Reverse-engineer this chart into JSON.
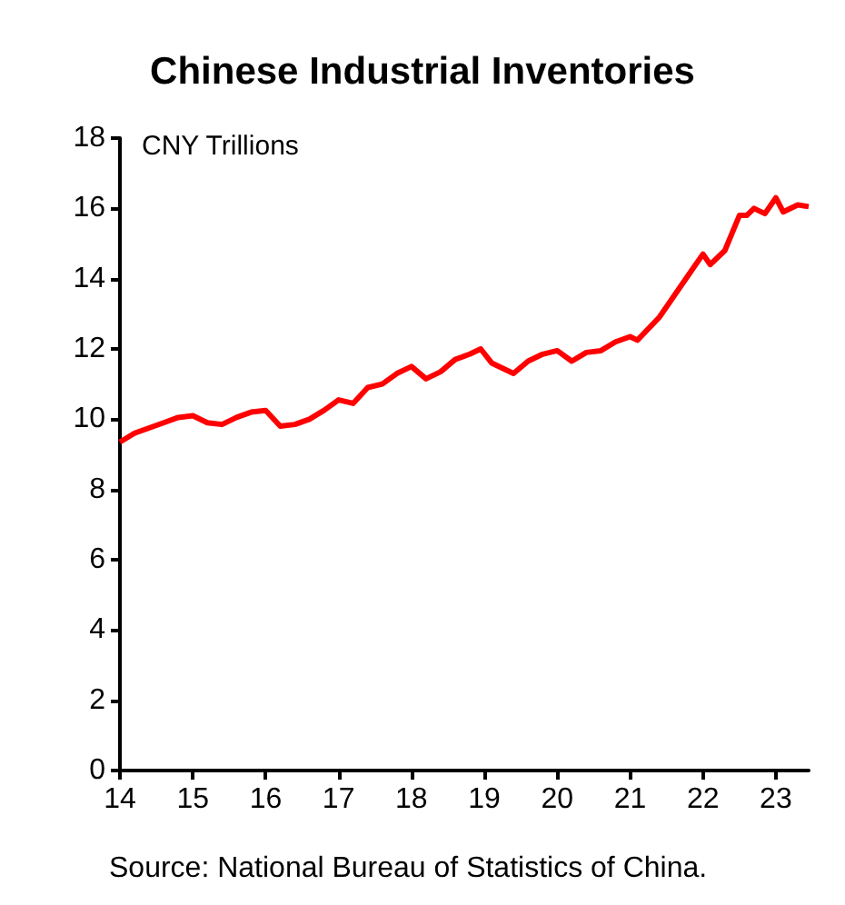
{
  "chart_data": {
    "type": "line",
    "title": "Chinese Industrial Inventories",
    "ylabel": "CNY Trillions",
    "annotations": [
      "Source: National Bureau of Statistics of China."
    ],
    "x": [
      14.0,
      14.2,
      14.4,
      14.6,
      14.8,
      15.0,
      15.2,
      15.4,
      15.6,
      15.8,
      16.0,
      16.2,
      16.4,
      16.6,
      16.8,
      17.0,
      17.2,
      17.4,
      17.6,
      17.8,
      18.0,
      18.2,
      18.4,
      18.6,
      18.8,
      18.95,
      19.1,
      19.4,
      19.6,
      19.8,
      20.0,
      20.2,
      20.4,
      20.6,
      20.8,
      21.0,
      21.1,
      21.4,
      21.6,
      21.8,
      22.0,
      22.1,
      22.3,
      22.5,
      22.6,
      22.7,
      22.85,
      23.0,
      23.1,
      23.3,
      23.45
    ],
    "series": [
      {
        "color": "#ff0000",
        "values": [
          9.35,
          9.6,
          9.75,
          9.9,
          10.05,
          10.1,
          9.9,
          9.85,
          10.05,
          10.2,
          10.25,
          9.8,
          9.85,
          10.0,
          10.25,
          10.55,
          10.45,
          10.9,
          11.0,
          11.3,
          11.5,
          11.15,
          11.35,
          11.7,
          11.85,
          12.0,
          11.6,
          11.3,
          11.65,
          11.85,
          11.95,
          11.65,
          11.9,
          11.95,
          12.2,
          12.35,
          12.25,
          12.9,
          13.5,
          14.1,
          14.7,
          14.4,
          14.8,
          15.8,
          15.8,
          16.0,
          15.85,
          16.3,
          15.9,
          16.1,
          16.05
        ]
      }
    ],
    "xlim": [
      14,
      23.45
    ],
    "xticks": [
      14,
      15,
      16,
      17,
      18,
      19,
      20,
      21,
      22,
      23
    ],
    "ylim": [
      0,
      18
    ],
    "yticks": [
      0,
      2,
      4,
      6,
      8,
      10,
      12,
      14,
      16,
      18
    ],
    "grid": false,
    "marker": "none",
    "line_style": "solid"
  }
}
